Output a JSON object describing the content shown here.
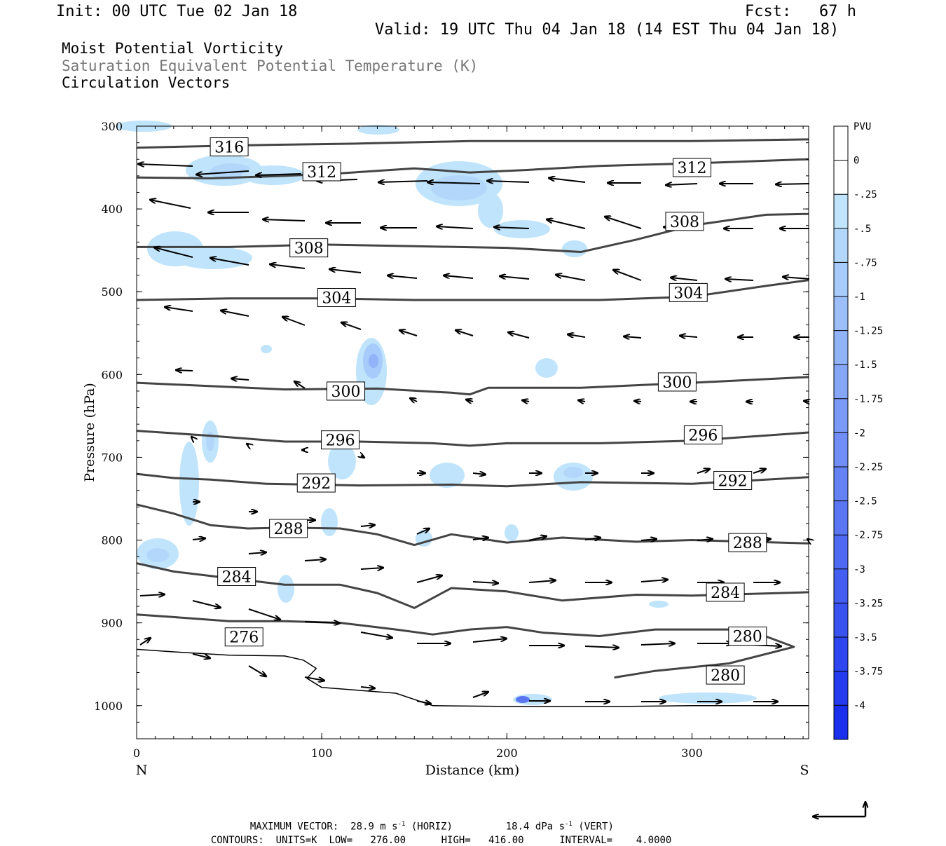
{
  "header": {
    "init": "Init: 00 UTC Tue 02 Jan 18",
    "fcst": "Fcst:   67 h",
    "valid": "Valid: 19 UTC Thu 04 Jan 18 (14 EST Thu 04 Jan 18)"
  },
  "fields": {
    "line1": "Moist Potential Vorticity",
    "line2": "Saturation Equivalent Potential Temperature (K)",
    "line3": "Circulation Vectors"
  },
  "colors": {
    "contour": "#444444",
    "label_box": "#ffffff",
    "field2_text": "#777777"
  },
  "chart_data": {
    "type": "cross-section",
    "xlabel": "Distance (km)",
    "ylabel": "Pressure (hPa)",
    "xlim": [
      0,
      363
    ],
    "ylim": [
      1040,
      300
    ],
    "x_ticks": [
      0,
      100,
      200,
      300
    ],
    "y_ticks": [
      300,
      400,
      500,
      600,
      700,
      800,
      900,
      1000
    ],
    "left_end_label": "N",
    "right_end_label": "S",
    "colorbar": {
      "unit": "PVU",
      "levels": [
        "0",
        "-.25",
        "-.5",
        "-.75",
        "-1",
        "-1.25",
        "-1.5",
        "-1.75",
        "-2",
        "-2.25",
        "-2.5",
        "-2.75",
        "-3",
        "-3.25",
        "-3.5",
        "-3.75",
        "-4"
      ],
      "colors": [
        "#ffffff",
        "#ffffff",
        "#bfe4fb",
        "#b3d7fa",
        "#a7cbfa",
        "#9cbff9",
        "#91b3f8",
        "#86a6f7",
        "#7b9af6",
        "#708ef5",
        "#6582f4",
        "#5a76f3",
        "#4f6af2",
        "#445ef1",
        "#3952f0",
        "#2e46ef",
        "#233aee",
        "#1a2eed"
      ]
    },
    "theta_e_contours": [
      {
        "label": "316",
        "label_at": [
          50,
          325
        ],
        "points": [
          [
            0,
            326
          ],
          [
            60,
            323
          ],
          [
            120,
            321
          ],
          [
            180,
            318
          ],
          [
            240,
            318
          ],
          [
            300,
            318
          ],
          [
            363,
            316
          ]
        ]
      },
      {
        "label": "312",
        "label_at": [
          100,
          355
        ],
        "label2": "312",
        "label2_at": [
          300,
          350
        ],
        "points": [
          [
            0,
            362
          ],
          [
            40,
            363
          ],
          [
            80,
            360
          ],
          [
            110,
            357
          ],
          [
            150,
            351
          ],
          [
            180,
            356
          ],
          [
            210,
            353
          ],
          [
            250,
            348
          ],
          [
            300,
            345
          ],
          [
            363,
            340
          ]
        ]
      },
      {
        "label": "308",
        "label_at": [
          93,
          447
        ],
        "label2": "308",
        "label2_at": [
          296,
          415
        ],
        "points": [
          [
            0,
            446
          ],
          [
            50,
            446
          ],
          [
            100,
            443
          ],
          [
            150,
            445
          ],
          [
            200,
            447
          ],
          [
            240,
            452
          ],
          [
            270,
            437
          ],
          [
            300,
            420
          ],
          [
            340,
            407
          ],
          [
            363,
            406
          ]
        ]
      },
      {
        "label": "304",
        "label_at": [
          108,
          507
        ],
        "label2": "304",
        "label2_at": [
          298,
          501
        ],
        "points": [
          [
            0,
            510
          ],
          [
            50,
            508
          ],
          [
            100,
            508
          ],
          [
            150,
            510
          ],
          [
            200,
            510
          ],
          [
            250,
            510
          ],
          [
            300,
            506
          ],
          [
            340,
            493
          ],
          [
            363,
            486
          ]
        ]
      },
      {
        "label": "300",
        "label_at": [
          113,
          620
        ],
        "label2": "300",
        "label2_at": [
          292,
          609
        ],
        "points": [
          [
            0,
            610
          ],
          [
            40,
            614
          ],
          [
            80,
            618
          ],
          [
            130,
            617
          ],
          [
            170,
            622
          ],
          [
            180,
            624
          ],
          [
            190,
            616
          ],
          [
            240,
            616
          ],
          [
            300,
            610
          ],
          [
            363,
            603
          ]
        ]
      },
      {
        "label": "296",
        "label_at": [
          110,
          679
        ],
        "label2": "296",
        "label2_at": [
          306,
          673
        ],
        "points": [
          [
            0,
            668
          ],
          [
            40,
            674
          ],
          [
            80,
            681
          ],
          [
            120,
            681
          ],
          [
            160,
            683
          ],
          [
            180,
            686
          ],
          [
            200,
            683
          ],
          [
            250,
            683
          ],
          [
            300,
            680
          ],
          [
            363,
            670
          ]
        ]
      },
      {
        "label": "292",
        "label_at": [
          97,
          731
        ],
        "label2": "292",
        "label2_at": [
          322,
          728
        ],
        "points": [
          [
            0,
            720
          ],
          [
            20,
            725
          ],
          [
            40,
            727
          ],
          [
            70,
            732
          ],
          [
            120,
            734
          ],
          [
            170,
            733
          ],
          [
            200,
            735
          ],
          [
            240,
            730
          ],
          [
            300,
            732
          ],
          [
            363,
            724
          ]
        ]
      },
      {
        "label": "288",
        "label_at": [
          82,
          786
        ],
        "label2": "288",
        "label2_at": [
          330,
          803
        ],
        "points": [
          [
            0,
            757
          ],
          [
            20,
            768
          ],
          [
            40,
            782
          ],
          [
            60,
            786
          ],
          [
            80,
            785
          ],
          [
            110,
            786
          ],
          [
            130,
            793
          ],
          [
            150,
            806
          ],
          [
            170,
            793
          ],
          [
            200,
            803
          ],
          [
            230,
            797
          ],
          [
            270,
            802
          ],
          [
            300,
            800
          ],
          [
            363,
            804
          ]
        ]
      },
      {
        "label": "284",
        "label_at": [
          54,
          844
        ],
        "label2": "284",
        "label2_at": [
          318,
          863
        ],
        "points": [
          [
            0,
            828
          ],
          [
            20,
            838
          ],
          [
            50,
            846
          ],
          [
            80,
            854
          ],
          [
            110,
            854
          ],
          [
            130,
            864
          ],
          [
            150,
            882
          ],
          [
            170,
            858
          ],
          [
            200,
            862
          ],
          [
            230,
            873
          ],
          [
            270,
            866
          ],
          [
            300,
            867
          ],
          [
            363,
            863
          ]
        ]
      },
      {
        "label": "280",
        "label_at": [
          330,
          916
        ],
        "label2": "280",
        "label2_at": [
          318,
          963
        ],
        "points": [
          [
            0,
            890
          ],
          [
            20,
            893
          ],
          [
            50,
            898
          ],
          [
            80,
            898
          ],
          [
            110,
            900
          ],
          [
            140,
            908
          ],
          [
            160,
            914
          ],
          [
            180,
            908
          ],
          [
            200,
            905
          ],
          [
            220,
            912
          ],
          [
            250,
            916
          ],
          [
            280,
            908
          ],
          [
            330,
            908
          ],
          [
            355,
            929
          ],
          [
            320,
            949
          ],
          [
            280,
            958
          ],
          [
            258,
            966
          ]
        ]
      },
      {
        "label": "276",
        "label_at": [
          58,
          917
        ],
        "points": [
          [
            0,
            932
          ],
          [
            20,
            935
          ],
          [
            50,
            939
          ],
          [
            80,
            940
          ],
          [
            90,
            945
          ],
          [
            97,
            955
          ],
          [
            92,
            967
          ],
          [
            100,
            978
          ],
          [
            140,
            985
          ],
          [
            160,
            1000
          ],
          [
            200,
            1001
          ],
          [
            260,
            1001
          ],
          [
            300,
            1000
          ],
          [
            363,
            1000
          ]
        ]
      }
    ],
    "max_vector": {
      "label": "MAXIMUM VECTOR:",
      "horiz": "28.9 m s",
      "horiz_sup": "-1",
      "horiz_unit": "(HORIZ)",
      "vert": "18.4 dPa s",
      "vert_sup": "-1",
      "vert_unit": "(VERT)"
    },
    "contours_info": {
      "label": "CONTOURS:",
      "units": "UNITS=K",
      "low": "LOW=   276.00",
      "high": "HIGH=   416.00",
      "interval": "INTERVAL=    4.0000"
    }
  }
}
